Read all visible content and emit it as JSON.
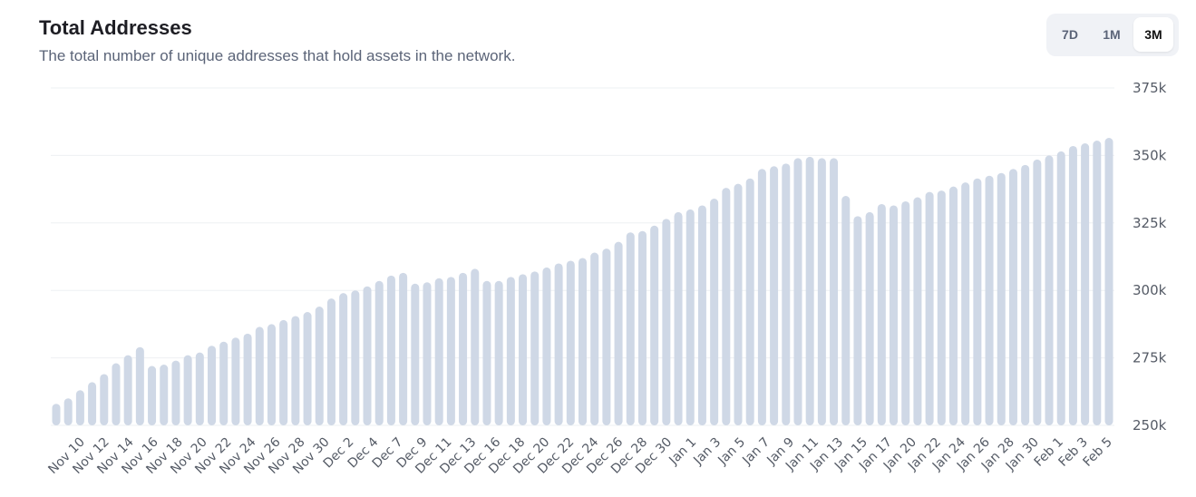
{
  "header": {
    "title": "Total Addresses",
    "subtitle": "The total number of unique addresses that hold assets in the network."
  },
  "range_selector": {
    "options": [
      "7D",
      "1M",
      "3M"
    ],
    "selected": "3M"
  },
  "colors": {
    "bar": "#cfd8e6",
    "grid": "#eef0f3",
    "axis_text": "#555b66"
  },
  "chart_data": {
    "type": "bar",
    "title": "Total Addresses",
    "ylim": [
      250000,
      375000
    ],
    "y_ticks": [
      250000,
      275000,
      300000,
      325000,
      350000,
      375000
    ],
    "y_tick_labels": [
      "250k",
      "275k",
      "300k",
      "325k",
      "350k",
      "375k"
    ],
    "grid": true,
    "x_tick_labels": [
      "Nov 10",
      "Nov 12",
      "Nov 14",
      "Nov 16",
      "Nov 18",
      "Nov 20",
      "Nov 22",
      "Nov 24",
      "Nov 26",
      "Nov 28",
      "Nov 30",
      "Dec 2",
      "Dec 4",
      "Dec 7",
      "Dec 9",
      "Dec 11",
      "Dec 13",
      "Dec 16",
      "Dec 18",
      "Dec 20",
      "Dec 22",
      "Dec 24",
      "Dec 26",
      "Dec 28",
      "Dec 30",
      "Jan 1",
      "Jan 3",
      "Jan 5",
      "Jan 7",
      "Jan 9",
      "Jan 11",
      "Jan 13",
      "Jan 15",
      "Jan 17",
      "Jan 20",
      "Jan 22",
      "Jan 24",
      "Jan 26",
      "Jan 28",
      "Jan 30",
      "Feb 1",
      "Feb 3",
      "Feb 5"
    ],
    "values": [
      258000,
      260000,
      263000,
      266000,
      269000,
      273000,
      276000,
      279000,
      272000,
      272500,
      274000,
      276000,
      277000,
      279500,
      281000,
      282500,
      284000,
      286500,
      287500,
      289000,
      290500,
      292000,
      294000,
      297000,
      299000,
      300000,
      301500,
      303500,
      305500,
      306500,
      302500,
      303000,
      304500,
      305000,
      306500,
      308000,
      303500,
      303500,
      305000,
      306000,
      307000,
      308500,
      310000,
      311000,
      312000,
      314000,
      315500,
      318000,
      321500,
      322000,
      324000,
      326500,
      329000,
      330000,
      331500,
      334000,
      338000,
      339500,
      341500,
      345000,
      346000,
      347000,
      349000,
      349500,
      349000,
      349000,
      335000,
      327500,
      329000,
      332000,
      331500,
      333000,
      334500,
      336500,
      337000,
      338500,
      340000,
      341500,
      342500,
      343500,
      345000,
      346500,
      348500,
      350000,
      351500,
      353500,
      354500,
      355500,
      356500
    ]
  }
}
